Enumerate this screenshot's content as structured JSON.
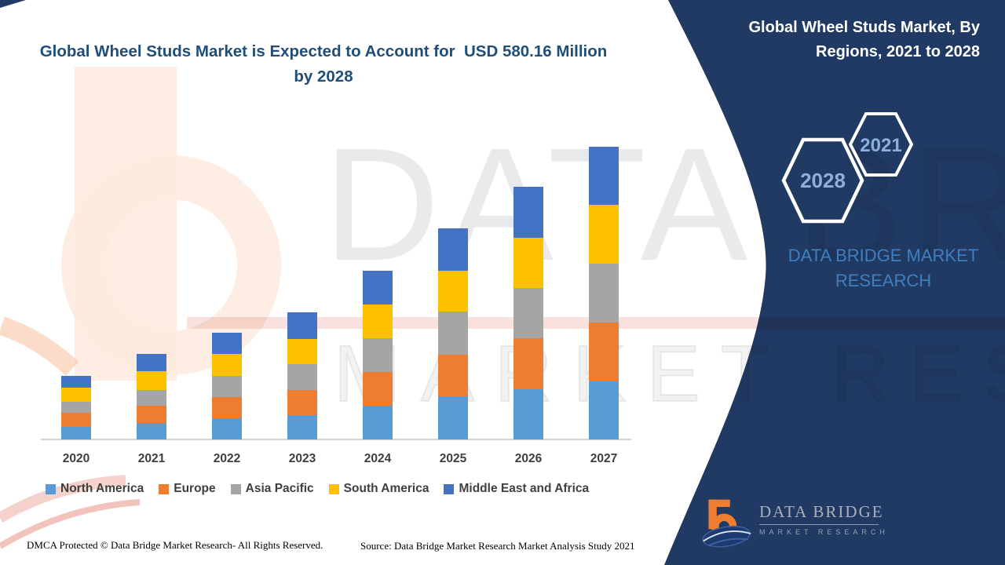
{
  "header": {
    "title": "Global Wheel Studs Market is Expected to Account for  USD 580.16 Million by 2028",
    "title_color": "#1F4E79"
  },
  "panel": {
    "title_line1": "Global Wheel Studs Market, By",
    "title_line2": "Regions, 2021 to 2028",
    "hexagon_back_label": "2028",
    "hexagon_front_label": "2021",
    "brand_line1": "DATA BRIDGE MARKET",
    "brand_line2": "RESEARCH",
    "logo": {
      "name": "DATA BRIDGE",
      "tagline": "MARKET RESEARCH"
    },
    "colors": {
      "background": "#203a64",
      "title_text": "#ffffff",
      "hexagon_text": "#8FAEDC",
      "brand_text": "#3E7FC1"
    }
  },
  "watermark": {
    "line1": "DATA BRIDGE",
    "line2": "MARKET RESEARCH"
  },
  "chart_data": {
    "type": "bar",
    "stacked": true,
    "title": "Global Wheel Studs Market is Expected to Account for  USD 580.16 Million by 2028",
    "categories": [
      "2020",
      "2021",
      "2022",
      "2023",
      "2024",
      "2025",
      "2026",
      "2027"
    ],
    "series": [
      {
        "name": "North America",
        "color": "#5B9BD5",
        "values": [
          16,
          21,
          27,
          31,
          43,
          55,
          64,
          74
        ]
      },
      {
        "name": "Europe",
        "color": "#ED7D31",
        "values": [
          18,
          22,
          27,
          32,
          43,
          53,
          65,
          75
        ]
      },
      {
        "name": "Asia Pacific",
        "color": "#A5A5A5",
        "values": [
          14,
          20,
          27,
          33,
          43,
          55,
          64,
          75
        ]
      },
      {
        "name": "South America",
        "color": "#FFC000",
        "values": [
          18,
          24,
          28,
          32,
          43,
          52,
          64,
          75
        ]
      },
      {
        "name": "Middle East and Africa",
        "color": "#4472C4",
        "values": [
          15,
          22,
          27,
          34,
          43,
          54,
          65,
          74
        ]
      }
    ],
    "totals": [
      81,
      109,
      136,
      162,
      215,
      269,
      322,
      373
    ],
    "value_axis": "hidden — values are relative units estimated from bar heights",
    "xlabel": "",
    "ylabel": "",
    "grid": false,
    "legend_position": "bottom"
  },
  "footer": {
    "dmca": "DMCA Protected © Data Bridge Market Research- All Rights Reserved.",
    "source": "Source: Data Bridge Market Research Market Analysis Study 2021"
  }
}
